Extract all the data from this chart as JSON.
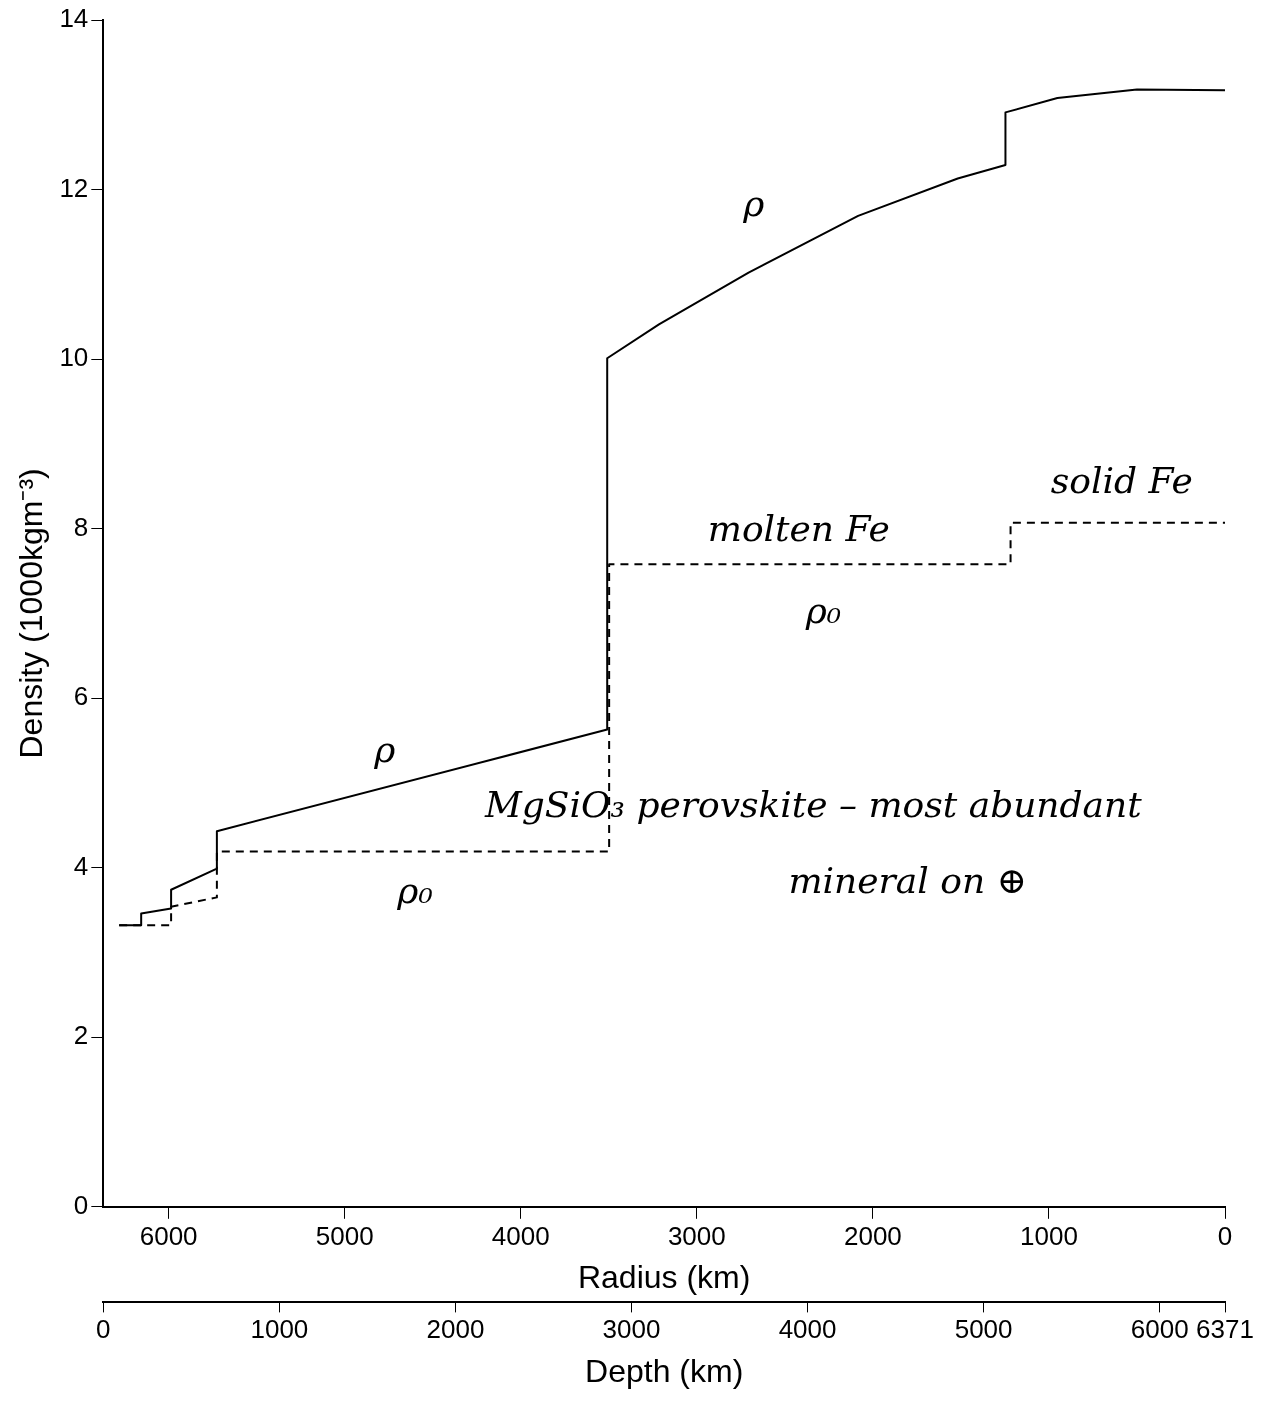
{
  "chart_data": {
    "type": "line",
    "ylabel": "Density (1000kgm⁻³)",
    "xlabel": "Depth (km)",
    "x2label": "Radius (km)",
    "xlim": [
      0,
      6371
    ],
    "xticks": [
      0,
      1000,
      2000,
      3000,
      4000,
      5000,
      6000,
      6371
    ],
    "x2lim": [
      6371,
      0
    ],
    "x2ticks": [
      6000,
      5000,
      4000,
      3000,
      2000,
      1000,
      0
    ],
    "ylim": [
      0,
      14
    ],
    "yticks": [
      0,
      2,
      4,
      6,
      8,
      10,
      12,
      14
    ],
    "grid": false,
    "legend": false,
    "marker": "none",
    "series": [
      {
        "color": "#000000",
        "line_style": "solid",
        "x": [
          90,
          215,
          215,
          385,
          385,
          645,
          645,
          2862,
          2862,
          3156,
          3665,
          4287,
          4853,
          5124,
          5124,
          5419,
          5871,
          6371
        ],
        "values": [
          3.32,
          3.32,
          3.46,
          3.52,
          3.74,
          3.99,
          4.43,
          5.63,
          10.01,
          10.41,
          11.02,
          11.69,
          12.13,
          12.29,
          12.91,
          13.08,
          13.18,
          13.17
        ]
      },
      {
        "color": "#000000",
        "line_style": "dashed",
        "x": [
          90,
          385,
          385,
          645,
          645,
          2873,
          2873,
          5153,
          5153,
          6371
        ],
        "values": [
          3.32,
          3.32,
          3.54,
          3.65,
          4.19,
          4.19,
          7.58,
          7.58,
          8.07,
          8.07
        ]
      }
    ],
    "annotations": [
      "ρ",
      "molten Fe",
      "ρ₀",
      "solid Fe",
      "ρ",
      "MgSiO₃ perovskite – most abundant",
      "mineral on ⊕",
      "ρ₀"
    ]
  }
}
